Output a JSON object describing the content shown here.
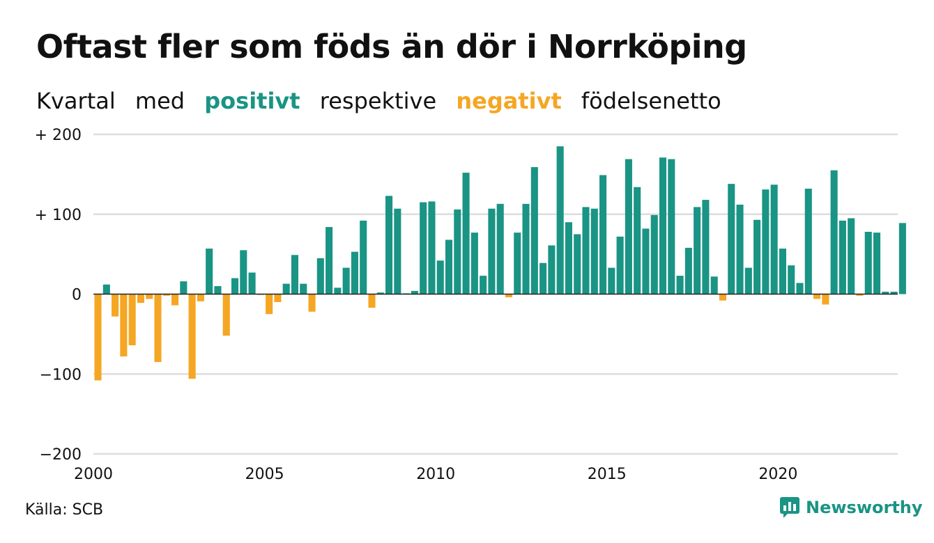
{
  "title": "Oftast fler som föds än dör i Norrköping",
  "subtitle": {
    "part1": "Kvartal",
    "part2": "med",
    "positive": "positivt",
    "part3": "respektive",
    "negative": "negativt",
    "part4": "födelsenetto"
  },
  "colors": {
    "positive": "#1a9484",
    "negative": "#f5a623",
    "grid": "#dddddd",
    "text": "#111111"
  },
  "source": "Källa: SCB",
  "brand": {
    "name": "Newsworthy",
    "icon": "newsworthy-logo-icon"
  },
  "chart_data": {
    "type": "bar",
    "grid": true,
    "ylim": [
      -200,
      200
    ],
    "y_ticks": [
      200,
      100,
      0,
      -100,
      -200
    ],
    "y_tick_labels": [
      "+ 200",
      "+ 100",
      "0",
      "−100",
      "−200"
    ],
    "x_tick_labels": [
      "2000",
      "2005",
      "2010",
      "2015",
      "2020"
    ],
    "start": {
      "year": 2000,
      "quarter": 1
    },
    "values": [
      -108,
      12,
      -28,
      -78,
      -64,
      -11,
      -6,
      -85,
      -2,
      -14,
      16,
      -106,
      -9,
      57,
      10,
      -52,
      20,
      55,
      27,
      -1,
      -25,
      -10,
      13,
      49,
      13,
      -22,
      45,
      84,
      8,
      33,
      53,
      92,
      -17,
      2,
      123,
      107,
      1,
      4,
      115,
      116,
      42,
      68,
      106,
      152,
      77,
      23,
      107,
      113,
      -4,
      77,
      113,
      159,
      39,
      61,
      185,
      90,
      75,
      109,
      107,
      149,
      33,
      72,
      169,
      134,
      82,
      99,
      171,
      169,
      23,
      58,
      109,
      118,
      22,
      -8,
      138,
      112,
      33,
      93,
      131,
      137,
      57,
      36,
      14,
      132,
      -6,
      -13,
      155,
      92,
      95,
      -2,
      78,
      77,
      3,
      3,
      89
    ]
  }
}
